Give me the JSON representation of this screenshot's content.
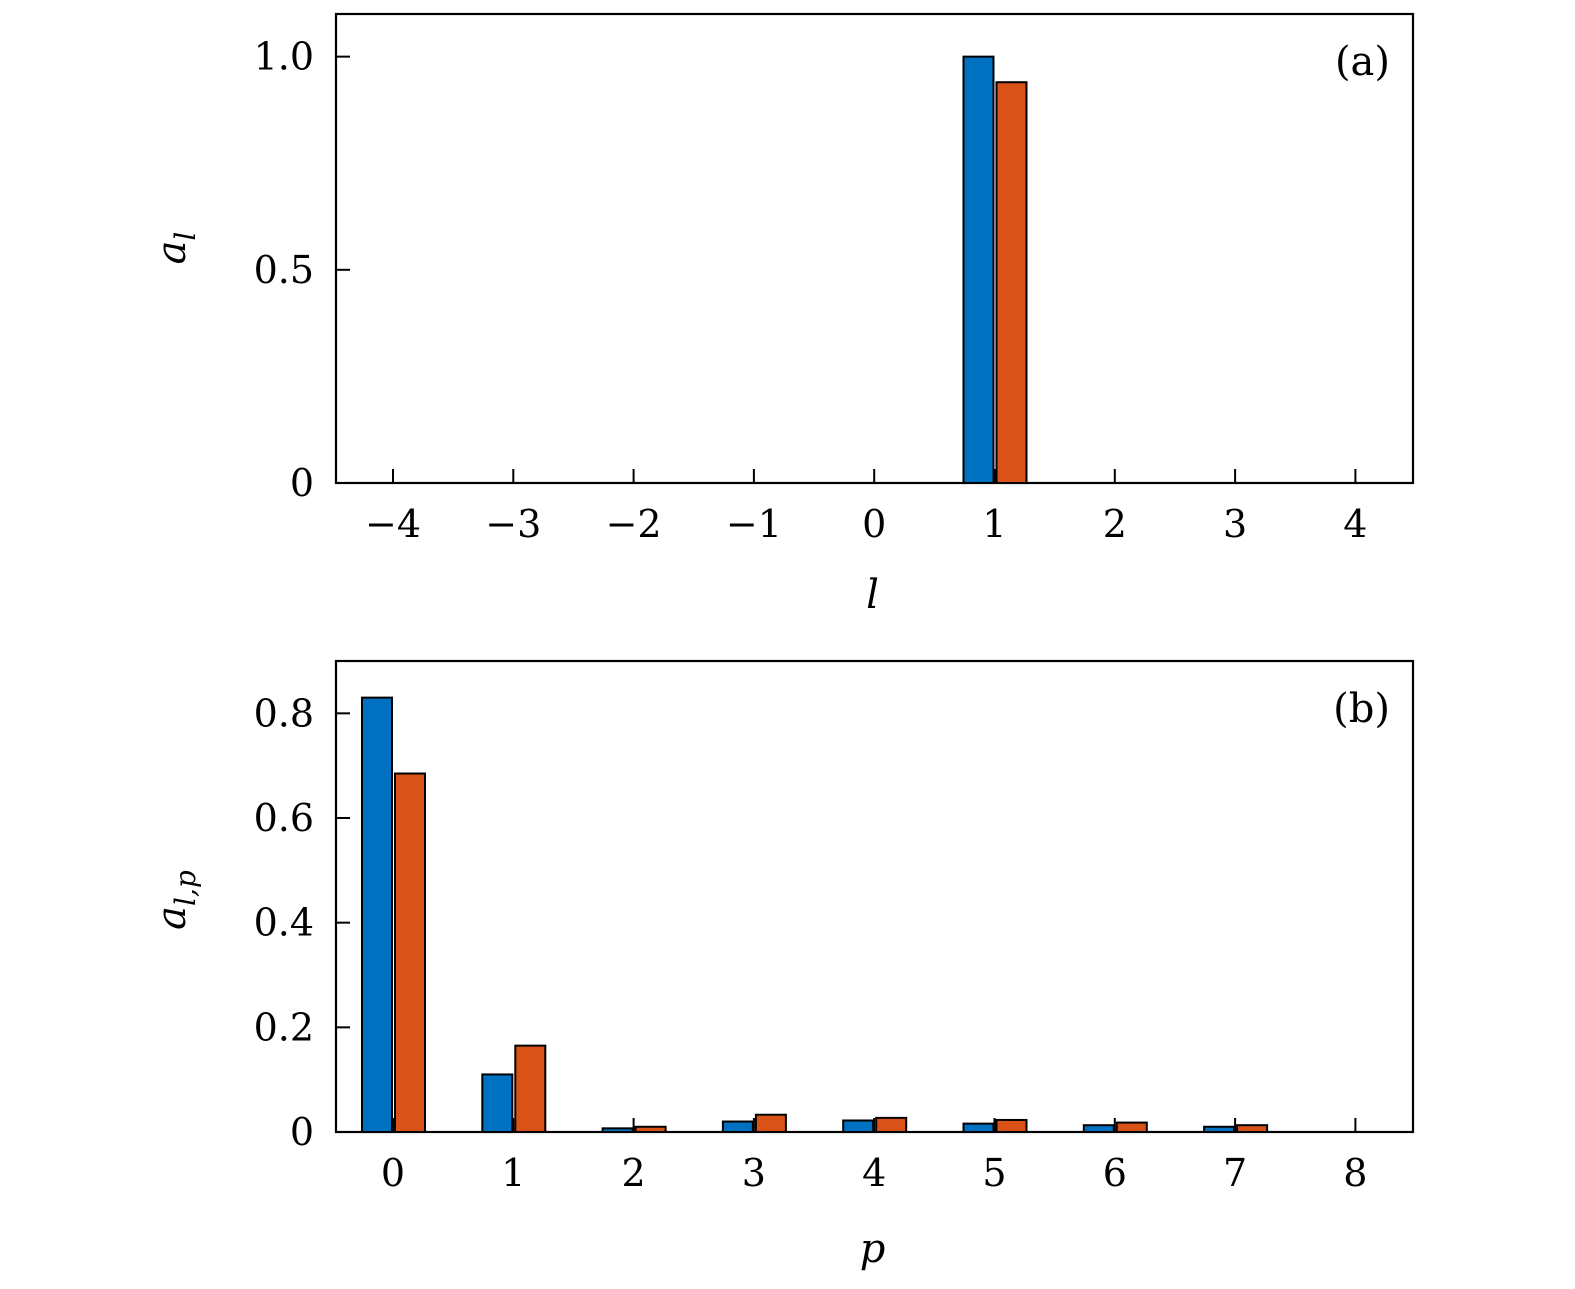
{
  "colors": {
    "series1": "#0070C0",
    "series2": "#D95319"
  },
  "chart_data": [
    {
      "type": "bar",
      "panel_label": "(a)",
      "xlabel": "l",
      "ylabel": {
        "base": "a",
        "sub": "l"
      },
      "categories": [
        -4,
        -3,
        -2,
        -1,
        0,
        1,
        2,
        3,
        4
      ],
      "x_tick_labels": [
        "−4",
        "−3",
        "−2",
        "−1",
        "0",
        "1",
        "2",
        "3",
        "4"
      ],
      "ylim": [
        0,
        1.1
      ],
      "yticks": [
        0,
        0.5,
        1.0
      ],
      "y_tick_labels": [
        "0",
        "0.5",
        "1.0"
      ],
      "series": [
        {
          "values": [
            0,
            0,
            0,
            0,
            0,
            1.0,
            0,
            0,
            0
          ]
        },
        {
          "values": [
            0,
            0,
            0,
            0,
            0,
            0.94,
            0,
            0,
            0
          ]
        }
      ],
      "grid": false
    },
    {
      "type": "bar",
      "panel_label": "(b)",
      "xlabel": "p",
      "ylabel": {
        "base": "a",
        "sub": "l,p"
      },
      "categories": [
        0,
        1,
        2,
        3,
        4,
        5,
        6,
        7,
        8
      ],
      "x_tick_labels": [
        "0",
        "1",
        "2",
        "3",
        "4",
        "5",
        "6",
        "7",
        "8"
      ],
      "ylim": [
        0,
        0.9
      ],
      "yticks": [
        0,
        0.2,
        0.4,
        0.6,
        0.8
      ],
      "y_tick_labels": [
        "0",
        "0.2",
        "0.4",
        "0.6",
        "0.8"
      ],
      "series": [
        {
          "values": [
            0.83,
            0.11,
            0.007,
            0.02,
            0.022,
            0.016,
            0.013,
            0.01,
            0
          ]
        },
        {
          "values": [
            0.685,
            0.165,
            0.01,
            0.033,
            0.027,
            0.023,
            0.018,
            0.013,
            0
          ]
        }
      ],
      "grid": false
    }
  ]
}
